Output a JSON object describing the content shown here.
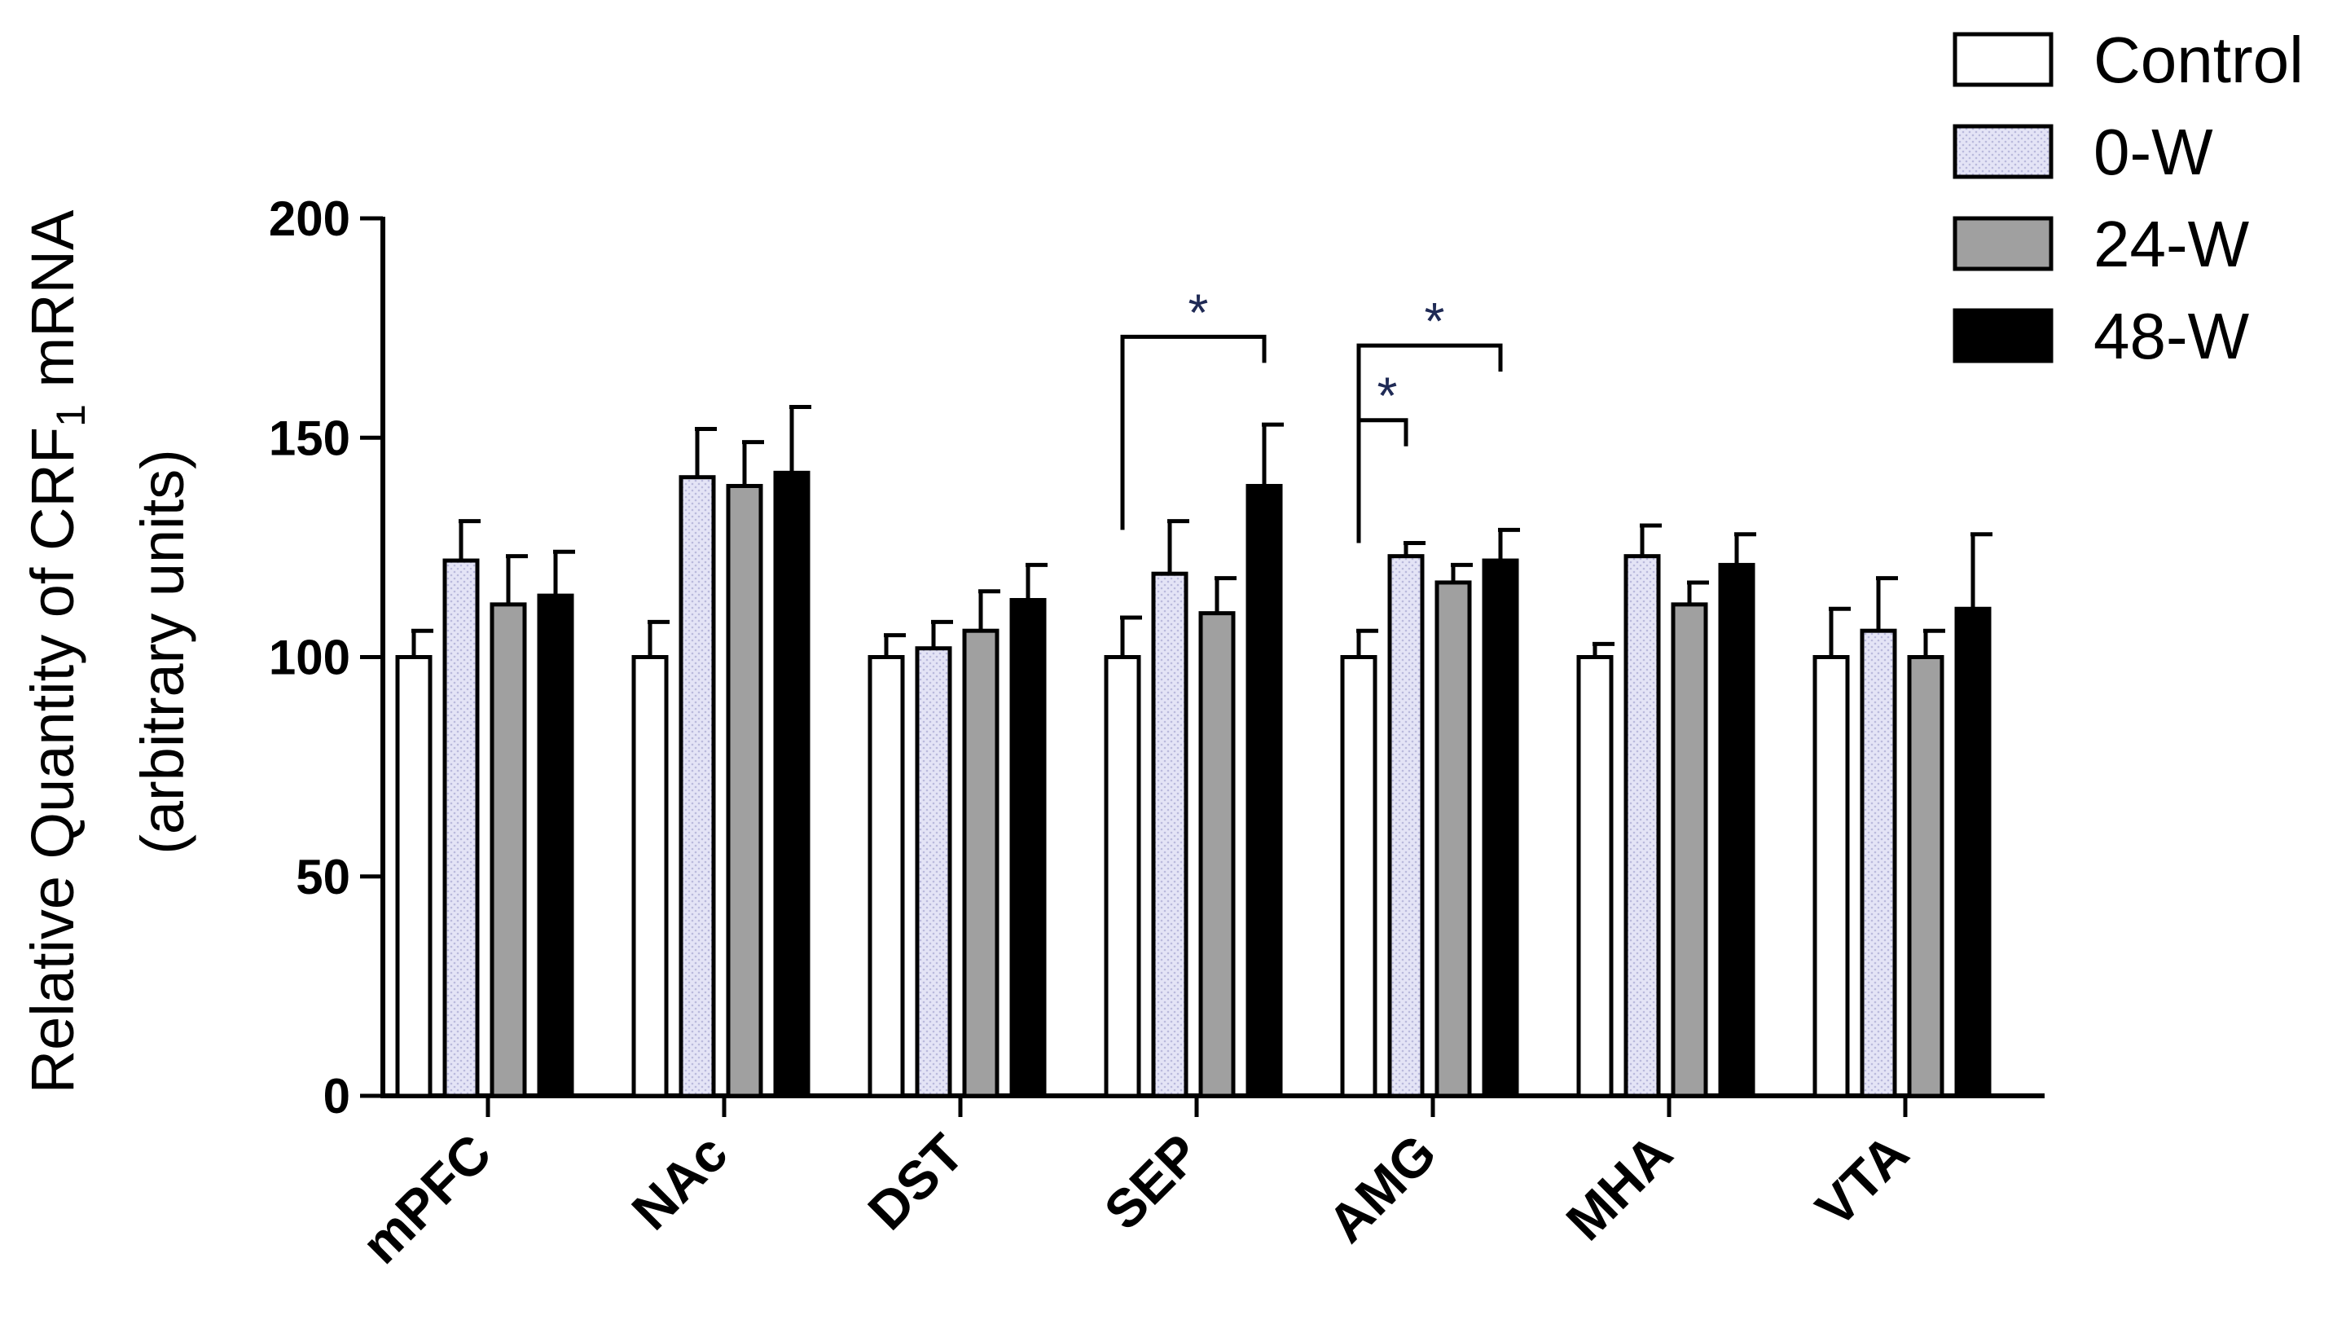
{
  "chart_data": {
    "type": "bar",
    "title": "",
    "ylabel_line1": "Relative Quantity of CRF",
    "ylabel_subscript": "1",
    "ylabel_line1_suffix": " mRNA",
    "ylabel_line2": "(arbitrary units)",
    "xlabel": "",
    "ylim": [
      0,
      200
    ],
    "yticks": [
      "0",
      "50",
      "100",
      "150",
      "200"
    ],
    "categories": [
      "mPFC",
      "NAc",
      "DST",
      "SEP",
      "AMG",
      "MHA",
      "VTA"
    ],
    "series": [
      {
        "name": "Control",
        "color": "#ffffff",
        "values": [
          100,
          100,
          100,
          100,
          100,
          100,
          100
        ],
        "errors": [
          6,
          8,
          5,
          9,
          6,
          3,
          11
        ]
      },
      {
        "name": "0-W",
        "color": "#dcdcf2",
        "values": [
          122,
          141,
          102,
          119,
          123,
          123,
          106
        ],
        "errors": [
          9,
          11,
          6,
          12,
          3,
          7,
          12
        ]
      },
      {
        "name": "24-W",
        "color": "#a0a0a0",
        "values": [
          112,
          139,
          106,
          110,
          117,
          112,
          100
        ],
        "errors": [
          11,
          10,
          9,
          8,
          4,
          5,
          6
        ]
      },
      {
        "name": "48-W",
        "color": "#000000",
        "values": [
          114,
          142,
          113,
          139,
          122,
          121,
          111
        ],
        "errors": [
          10,
          15,
          8,
          14,
          7,
          7,
          17
        ]
      }
    ],
    "legend_position": "top-right",
    "significance": [
      {
        "category": "SEP",
        "from_series": "Control",
        "to_series": "48-W",
        "label": "*"
      },
      {
        "category": "AMG",
        "from_series": "Control",
        "to_series": "0-W",
        "label": "*"
      },
      {
        "category": "AMG",
        "from_series": "Control",
        "to_series": "48-W",
        "label": "*"
      }
    ]
  }
}
